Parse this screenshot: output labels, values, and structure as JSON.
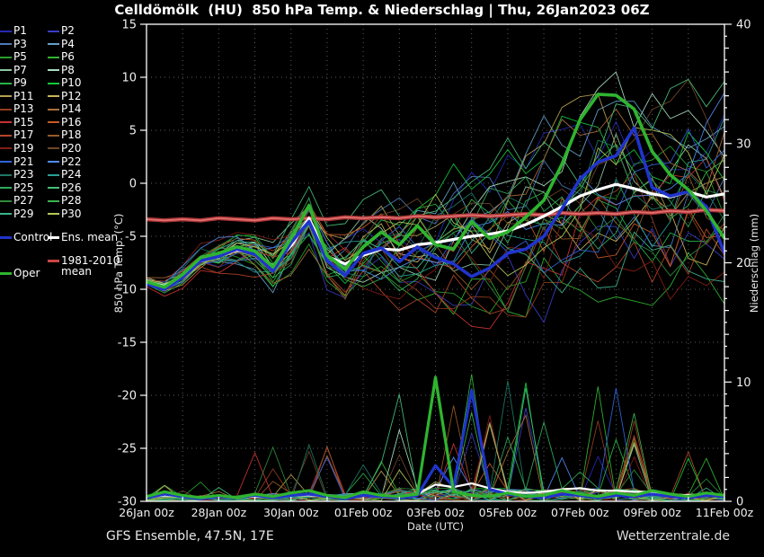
{
  "title": "Celldömölk  (HU)  850 hPa Temp. & Niederschlag | Thu, 26Jan2023 06Z",
  "footer": {
    "left": "GFS Ensemble, 47.5N, 17E",
    "right": "Wetterzentrale.de"
  },
  "legend": {
    "members": [
      {
        "label": "P1",
        "color": "#2828b4"
      },
      {
        "label": "P2",
        "color": "#3c3cc8"
      },
      {
        "label": "P3",
        "color": "#4d7ab4"
      },
      {
        "label": "P4",
        "color": "#64a0c8"
      },
      {
        "label": "P5",
        "color": "#28a028"
      },
      {
        "label": "P6",
        "color": "#32b432"
      },
      {
        "label": "P7",
        "color": "#8cc8a0"
      },
      {
        "label": "P8",
        "color": "#aadcbe"
      },
      {
        "label": "P9",
        "color": "#28b446"
      },
      {
        "label": "P10",
        "color": "#14c83c"
      },
      {
        "label": "P11",
        "color": "#b4a050"
      },
      {
        "label": "P12",
        "color": "#c8b45a"
      },
      {
        "label": "P13",
        "color": "#963c1e"
      },
      {
        "label": "P14",
        "color": "#aa6e3c"
      },
      {
        "label": "P15",
        "color": "#c83232"
      },
      {
        "label": "P16",
        "color": "#c85a28"
      },
      {
        "label": "P17",
        "color": "#b44628"
      },
      {
        "label": "P18",
        "color": "#965a28"
      },
      {
        "label": "P19",
        "color": "#821e14"
      },
      {
        "label": "P20",
        "color": "#6e4628"
      },
      {
        "label": "P21",
        "color": "#3264dc"
      },
      {
        "label": "P22",
        "color": "#508cf0"
      },
      {
        "label": "P23",
        "color": "#1e7864"
      },
      {
        "label": "P24",
        "color": "#28a096"
      },
      {
        "label": "P25",
        "color": "#32aa5a"
      },
      {
        "label": "P26",
        "color": "#46be78"
      },
      {
        "label": "P27",
        "color": "#2f8c3c"
      },
      {
        "label": "P28",
        "color": "#3cb450"
      },
      {
        "label": "P29",
        "color": "#3cb48c"
      },
      {
        "label": "P30",
        "color": "#b4c85a"
      }
    ],
    "specials": [
      {
        "id": "control",
        "label": "Control",
        "color": "#2034cc"
      },
      {
        "id": "ens_mean",
        "label": "Ens. mean",
        "color": "#ffffff"
      },
      {
        "id": "clim_mean",
        "label_line1": "1981-2010",
        "label_line2": "mean",
        "color": "#c84646"
      },
      {
        "id": "oper",
        "label": "Oper",
        "color": "#2fb42f"
      }
    ]
  },
  "chart_data": {
    "type": "line",
    "title": "GFS ensemble 850 hPa temperature and precipitation meteogram",
    "xlabel": "Date (UTC)",
    "x_range_days": [
      0,
      16
    ],
    "time_step_days": 0.5,
    "x_ticks": [
      {
        "day": 0,
        "label": "26Jan 00z"
      },
      {
        "day": 2,
        "label": "28Jan 00z"
      },
      {
        "day": 4,
        "label": "30Jan 00z"
      },
      {
        "day": 6,
        "label": "01Feb 00z"
      },
      {
        "day": 8,
        "label": "03Feb 00z"
      },
      {
        "day": 10,
        "label": "05Feb 00z"
      },
      {
        "day": 12,
        "label": "07Feb 00z"
      },
      {
        "day": 14,
        "label": "09Feb 00z"
      },
      {
        "day": 16,
        "label": "11Feb 00z"
      }
    ],
    "temp_axis": {
      "label": "850 hPa Temp. (°C)",
      "min": -30,
      "max": 15,
      "ticks": [
        15,
        10,
        5,
        0,
        -5,
        -10,
        -15,
        -20,
        -25,
        -30
      ]
    },
    "precip_axis": {
      "label": "Niederschlag (mm)",
      "min": 0,
      "max": 40,
      "ticks": [
        40,
        30,
        20,
        10,
        0
      ]
    },
    "grid": {
      "vertical_every_days": 1,
      "horizontal_every_degC": 5
    },
    "legend_position": "left",
    "series": {
      "oper": {
        "name": "Oper",
        "color": "#2fb42f",
        "temp": [
          -9.3,
          -9.8,
          -8.6,
          -7.0,
          -6.6,
          -6.0,
          -6.4,
          -7.9,
          -5.2,
          -2.1,
          -6.8,
          -8.1,
          -6.0,
          -4.6,
          -5.8,
          -4.0,
          -5.8,
          -6.2,
          -3.6,
          -5.2,
          -4.6,
          -3.2,
          -1.6,
          1.8,
          6.0,
          8.4,
          8.3,
          7.0,
          3.0,
          0.8,
          -0.6,
          -2.6,
          -5.2
        ],
        "precip": [
          0.4,
          0.8,
          0.5,
          0.3,
          0.5,
          0.3,
          0.6,
          0.4,
          0.7,
          0.9,
          0.5,
          0.3,
          0.8,
          0.5,
          0.4,
          0.6,
          10.4,
          0.8,
          0.5,
          0.4,
          0.7,
          0.4,
          0.5,
          0.9,
          0.6,
          0.4,
          0.7,
          0.5,
          0.9,
          0.6,
          0.4,
          0.7,
          0.5
        ]
      },
      "control": {
        "name": "Control",
        "color": "#2034cc",
        "temp": [
          -9.5,
          -10.0,
          -8.9,
          -7.3,
          -6.9,
          -6.2,
          -6.7,
          -8.3,
          -5.6,
          -3.6,
          -7.3,
          -8.7,
          -6.6,
          -6.1,
          -7.4,
          -6.0,
          -7.0,
          -7.6,
          -8.8,
          -8.0,
          -6.6,
          -6.2,
          -5.0,
          -2.4,
          0.4,
          2.0,
          2.6,
          5.2,
          -0.4,
          -1.2,
          -0.8,
          -2.2,
          -6.6
        ],
        "precip": [
          0.3,
          0.6,
          0.4,
          0.2,
          0.4,
          0.3,
          0.5,
          0.3,
          0.5,
          0.6,
          0.4,
          0.2,
          0.5,
          0.4,
          0.3,
          0.5,
          3.0,
          1.2,
          9.3,
          1.0,
          0.6,
          0.4,
          0.3,
          0.6,
          0.5,
          0.3,
          0.5,
          0.4,
          0.6,
          0.4,
          0.3,
          0.5,
          0.4
        ]
      },
      "ens_mean": {
        "name": "Ens. mean",
        "color": "#ffffff",
        "temp": [
          -9.3,
          -9.7,
          -8.7,
          -7.2,
          -6.9,
          -6.3,
          -6.6,
          -7.8,
          -5.9,
          -3.3,
          -6.9,
          -7.6,
          -6.8,
          -6.2,
          -6.3,
          -5.8,
          -5.6,
          -5.3,
          -5.0,
          -4.8,
          -4.5,
          -3.9,
          -3.1,
          -2.2,
          -1.2,
          -0.6,
          -0.1,
          -0.5,
          -1.0,
          -1.3,
          -0.8,
          -1.3,
          -1.0
        ],
        "precip": [
          0.3,
          0.5,
          0.4,
          0.3,
          0.4,
          0.3,
          0.4,
          0.3,
          0.5,
          0.5,
          0.4,
          0.3,
          0.5,
          0.4,
          0.4,
          0.6,
          1.4,
          1.2,
          1.5,
          1.1,
          0.8,
          0.7,
          0.8,
          1.0,
          1.1,
          0.9,
          0.9,
          0.8,
          0.8,
          0.6,
          0.5,
          0.5,
          0.4
        ]
      },
      "clim_mean": {
        "name": "1981-2010 mean",
        "color": "#c84646",
        "temp": [
          -3.4,
          -3.5,
          -3.4,
          -3.5,
          -3.3,
          -3.4,
          -3.5,
          -3.3,
          -3.4,
          -3.3,
          -3.4,
          -3.2,
          -3.3,
          -3.2,
          -3.3,
          -3.1,
          -3.2,
          -3.1,
          -3.0,
          -3.1,
          -3.0,
          -2.9,
          -3.0,
          -2.8,
          -2.9,
          -2.8,
          -2.9,
          -2.7,
          -2.8,
          -2.6,
          -2.7,
          -2.5,
          -2.6
        ]
      }
    },
    "ensemble": {
      "member_count": 30,
      "temp_spread_start_degC": 0.5,
      "temp_spread_per_day_degC": 0.55,
      "temp_spread_max_degC": 6.8,
      "precip_active_days": [
        7,
        13.5
      ],
      "precip_spike_max_mm": 10.8
    }
  }
}
